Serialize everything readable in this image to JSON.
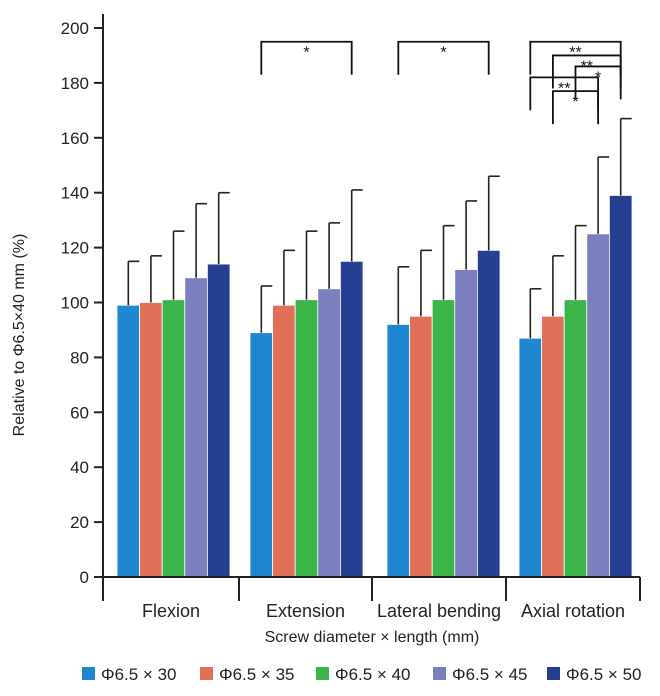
{
  "chart_data": {
    "type": "bar",
    "title": "",
    "xlabel": "Screw diameter × length (mm)",
    "ylabel": "Relative to Φ6.5×40 mm (%)",
    "ylim": [
      0,
      200
    ],
    "yticks": [
      "0",
      "20",
      "40",
      "60",
      "80",
      "100",
      "120",
      "140",
      "160",
      "180",
      "200"
    ],
    "categories": [
      "Flexion",
      "Extension",
      "Lateral bending",
      "Axial rotation"
    ],
    "series": [
      {
        "name": "Φ6.5 × 30",
        "color": "#1f87d0",
        "values": [
          99,
          89,
          92,
          87
        ],
        "errors": [
          16,
          17,
          21,
          18
        ]
      },
      {
        "name": "Φ6.5 × 35",
        "color": "#e07058",
        "values": [
          100,
          99,
          95,
          95
        ],
        "errors": [
          17,
          20,
          24,
          22
        ]
      },
      {
        "name": "Φ6.5 × 40",
        "color": "#3bb54a",
        "values": [
          101,
          101,
          101,
          101
        ],
        "errors": [
          25,
          25,
          27,
          27
        ]
      },
      {
        "name": "Φ6.5 × 45",
        "color": "#7b7fbd",
        "values": [
          109,
          105,
          112,
          125
        ],
        "errors": [
          27,
          24,
          25,
          28
        ]
      },
      {
        "name": "Φ6.5 × 50",
        "color": "#263f91",
        "values": [
          114,
          115,
          119,
          139
        ],
        "errors": [
          26,
          26,
          27,
          28
        ]
      }
    ],
    "legend_position": "bottom",
    "significance": [
      {
        "category": 1,
        "from_series": 0,
        "to_series": 4,
        "level": 195,
        "label": "*"
      },
      {
        "category": 2,
        "from_series": 0,
        "to_series": 4,
        "level": 195,
        "label": "*"
      },
      {
        "category": 3,
        "from_series": 0,
        "to_series": 4,
        "level": 195,
        "label": "**"
      },
      {
        "category": 3,
        "from_series": 1,
        "to_series": 4,
        "level": 190,
        "label": "**"
      },
      {
        "category": 3,
        "from_series": 2,
        "to_series": 4,
        "level": 186,
        "label": "*"
      },
      {
        "category": 3,
        "from_series": 0,
        "to_series": 3,
        "level": 182,
        "label": "**"
      },
      {
        "category": 3,
        "from_series": 1,
        "to_series": 3,
        "level": 177,
        "label": "*"
      }
    ]
  }
}
